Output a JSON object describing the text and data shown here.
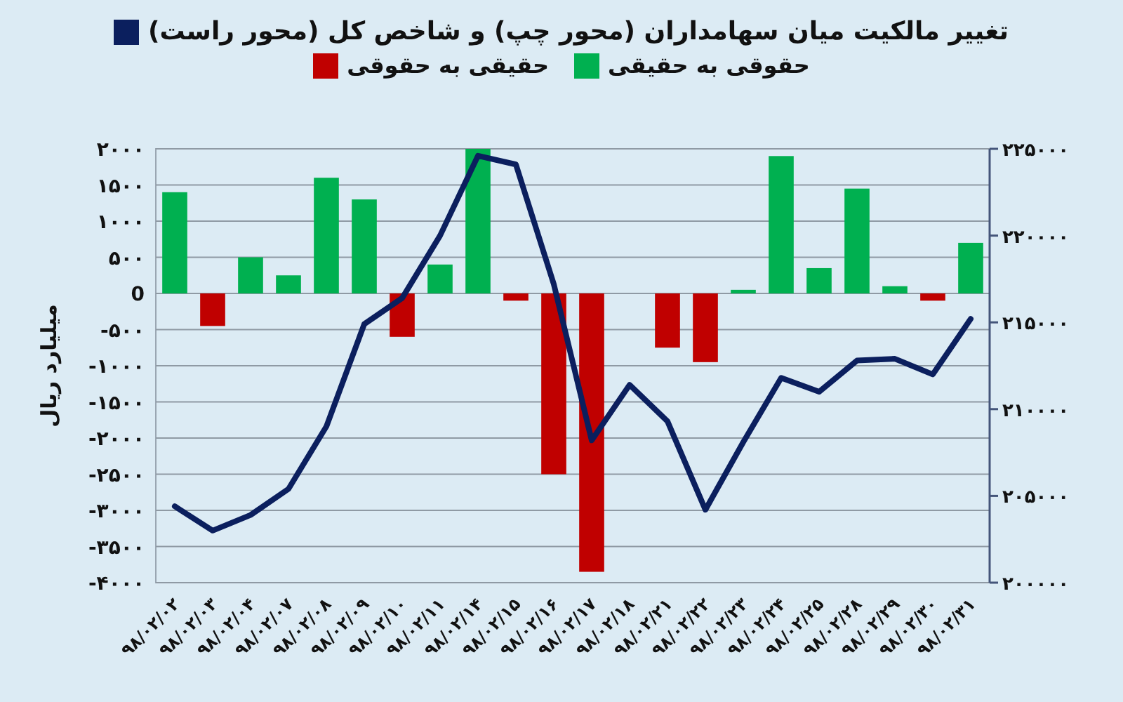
{
  "chart_data": {
    "type": "bar",
    "stacked": true,
    "ylabel": "میلیارد ریال",
    "legend": "top",
    "grid": "y",
    "categories": [
      "۹۸/۰۲/۰۲",
      "۹۸/۰۲/۰۳",
      "۹۸/۰۲/۰۴",
      "۹۸/۰۲/۰۷",
      "۹۸/۰۲/۰۸",
      "۹۸/۰۲/۰۹",
      "۹۸/۰۲/۱۰",
      "۹۸/۰۲/۱۱",
      "۹۸/۰۲/۱۴",
      "۹۸/۰۲/۱۵",
      "۹۸/۰۲/۱۶",
      "۹۸/۰۲/۱۷",
      "۹۸/۰۲/۱۸",
      "۹۸/۰۲/۲۱",
      "۹۸/۰۲/۲۲",
      "۹۸/۰۲/۲۳",
      "۹۸/۰۲/۲۴",
      "۹۸/۰۲/۲۵",
      "۹۸/۰۲/۲۸",
      "۹۸/۰۲/۲۹",
      "۹۸/۰۲/۳۰",
      "۹۸/۰۲/۳۱"
    ],
    "series": [
      {
        "name": "تغییر مالکیت میان سهامداران (محور چپ) و شاخص کل (محور راست)",
        "type": "line",
        "axis": "y2",
        "color": "#0b1f5e",
        "values": [
          204400,
          203000,
          203900,
          205400,
          209000,
          214900,
          216400,
          220000,
          224600,
          224100,
          217200,
          208200,
          211400,
          209300,
          204200,
          208100,
          211800,
          211000,
          212800,
          212900,
          212000,
          215200
        ]
      },
      {
        "name": "حقوقی به حقیقی",
        "color": "#00b050",
        "values": [
          1400,
          null,
          500,
          250,
          1600,
          1300,
          null,
          400,
          2000,
          null,
          null,
          null,
          null,
          null,
          null,
          50,
          1900,
          350,
          1450,
          100,
          null,
          700
        ]
      },
      {
        "name": "حقیقی به حقوقی",
        "color": "#c00000",
        "values": [
          null,
          -450,
          null,
          null,
          null,
          null,
          -600,
          null,
          null,
          -100,
          -2500,
          -3850,
          null,
          -750,
          -950,
          null,
          null,
          null,
          null,
          null,
          -100,
          null
        ]
      }
    ],
    "ylim": [
      -4000,
      2000
    ],
    "yticks": [
      {
        "value": 2000,
        "label": "۲۰۰۰"
      },
      {
        "value": 1500,
        "label": "۱۵۰۰"
      },
      {
        "value": 1000,
        "label": "۱۰۰۰"
      },
      {
        "value": 500,
        "label": "۵۰۰"
      },
      0,
      {
        "value": -500,
        "label": "-۵۰۰"
      },
      {
        "value": -1000,
        "label": "-۱۰۰۰"
      },
      {
        "value": -1500,
        "label": "-۱۵۰۰"
      },
      {
        "value": -2000,
        "label": "-۲۰۰۰"
      },
      {
        "value": -2500,
        "label": "-۲۵۰۰"
      },
      {
        "value": -3000,
        "label": "-۳۰۰۰"
      },
      {
        "value": -3500,
        "label": "-۳۵۰۰"
      },
      {
        "value": -4000,
        "label": "-۴۰۰۰"
      }
    ],
    "y2lim": [
      200000,
      225000
    ],
    "y2ticks": [
      {
        "value": 200000,
        "label": "۲۰۰۰۰۰"
      },
      {
        "value": 205000,
        "label": "۲۰۵۰۰۰"
      },
      {
        "value": 210000,
        "label": "۲۱۰۰۰۰"
      },
      {
        "value": 215000,
        "label": "۲۱۵۰۰۰"
      },
      {
        "value": 220000,
        "label": "۲۲۰۰۰۰"
      },
      {
        "value": 225000,
        "label": "۲۲۵۰۰۰"
      }
    ]
  }
}
